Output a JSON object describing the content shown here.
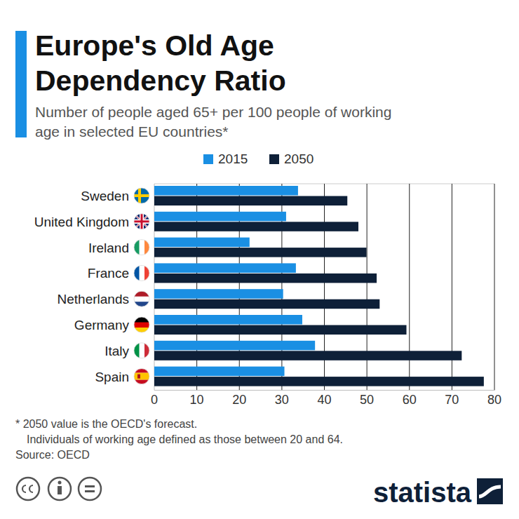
{
  "chart_data": {
    "type": "bar",
    "orientation": "horizontal",
    "title": "Europe's Old Age Dependency Ratio",
    "subtitle": "Number of people aged 65+ per 100 people of working age in selected EU countries*",
    "categories": [
      "Sweden",
      "United Kingdom",
      "Ireland",
      "France",
      "Netherlands",
      "Germany",
      "Italy",
      "Spain"
    ],
    "series": [
      {
        "name": "2015",
        "color": "#1a8fe3",
        "values": [
          33.8,
          31,
          22.4,
          33.3,
          30.3,
          34.8,
          37.8,
          30.6
        ]
      },
      {
        "name": "2050",
        "color": "#0e2038",
        "values": [
          45.4,
          48,
          49.9,
          52.3,
          53,
          59.3,
          72.3,
          77.5
        ]
      }
    ],
    "xlim": [
      0,
      80
    ],
    "xticks": [
      0,
      10,
      20,
      30,
      40,
      50,
      60,
      70,
      80
    ],
    "grid": true,
    "legend": "top",
    "notes": [
      "* 2050 value is the OECD's forecast.",
      "Individuals of working age defined as those between 20 and 64.",
      "Source: OECD"
    ],
    "brand": "statista"
  }
}
